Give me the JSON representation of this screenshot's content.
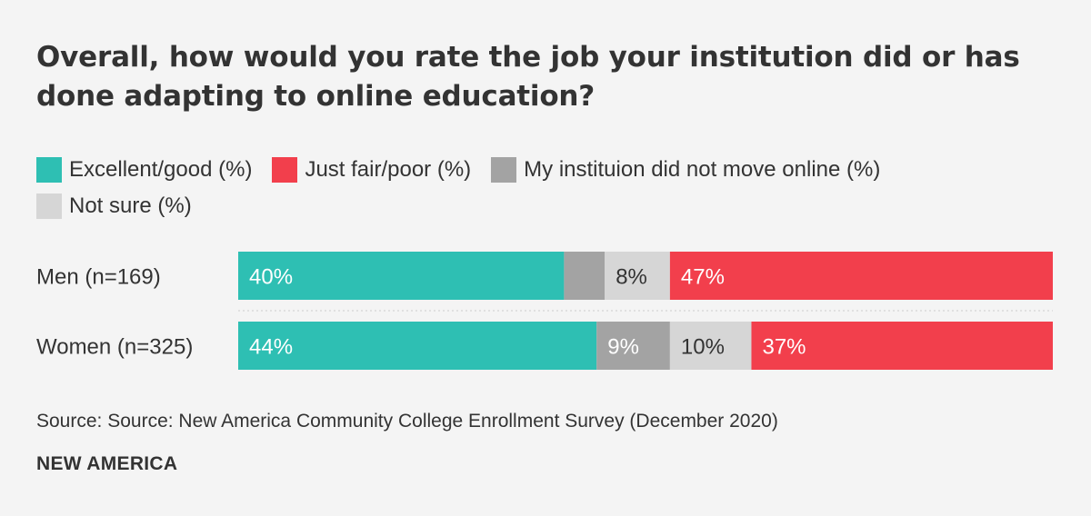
{
  "title": "Overall, how would you rate the job your institution did or has done adapting to online education?",
  "legend": [
    {
      "label": "Excellent/good (%)",
      "color": "#2ebfb3"
    },
    {
      "label": "Just fair/poor (%)",
      "color": "#f23f4c"
    },
    {
      "label": "My instituion did not move online (%)",
      "color": "#a3a3a3"
    },
    {
      "label": "Not sure (%)",
      "color": "#d6d6d6"
    }
  ],
  "chart_data": {
    "type": "bar",
    "orientation": "horizontal",
    "stacked": true,
    "categories": [
      "Men (n=169)",
      "Women (n=325)"
    ],
    "series": [
      {
        "name": "Excellent/good (%)",
        "color": "#2ebfb3",
        "values": [
          40,
          44
        ],
        "labels": [
          "40%",
          "44%"
        ]
      },
      {
        "name": "My instituion did not move online (%)",
        "color": "#a3a3a3",
        "values": [
          5,
          9
        ],
        "labels": [
          "",
          "9%"
        ]
      },
      {
        "name": "Not sure (%)",
        "color": "#d6d6d6",
        "values": [
          8,
          10
        ],
        "labels": [
          "8%",
          "10%"
        ]
      },
      {
        "name": "Just fair/poor (%)",
        "color": "#f23f4c",
        "values": [
          47,
          37
        ],
        "labels": [
          "47%",
          "37%"
        ]
      }
    ],
    "xlim": [
      0,
      100
    ],
    "grid": false,
    "legend_position": "top-left"
  },
  "source": "Source: Source: New America Community College Enrollment Survey (December 2020)",
  "brand": "NEW AMERICA"
}
